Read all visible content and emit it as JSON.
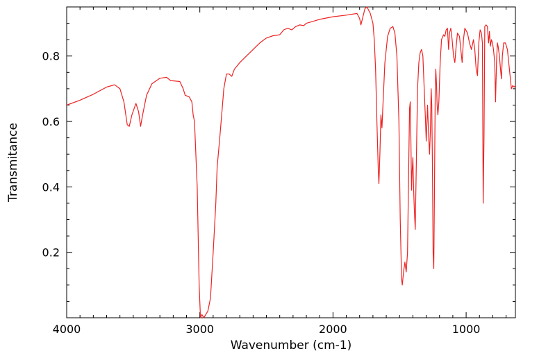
{
  "chart_data": {
    "type": "line",
    "title": "",
    "xlabel": "Wavenumber (cm-1)",
    "ylabel": "Transmitance",
    "xlim": [
      4000,
      630
    ],
    "ylim": [
      0.0,
      0.95
    ],
    "x_ticks": [
      4000,
      3000,
      2000,
      1000
    ],
    "x_tick_labels": [
      "4000",
      "3000",
      "2000",
      "1000"
    ],
    "y_ticks": [
      0.2,
      0.4,
      0.6,
      0.8
    ],
    "y_tick_labels": [
      "0.2",
      "0.4",
      "0.6",
      "0.8"
    ],
    "grid": false,
    "legend": "none",
    "series": [
      {
        "name": "IR spectrum",
        "color": "#ee2222",
        "points": [
          [
            4000,
            0.65
          ],
          [
            3900,
            0.665
          ],
          [
            3800,
            0.683
          ],
          [
            3700,
            0.705
          ],
          [
            3640,
            0.712
          ],
          [
            3600,
            0.7
          ],
          [
            3570,
            0.66
          ],
          [
            3545,
            0.59
          ],
          [
            3530,
            0.585
          ],
          [
            3510,
            0.62
          ],
          [
            3480,
            0.655
          ],
          [
            3460,
            0.63
          ],
          [
            3445,
            0.585
          ],
          [
            3430,
            0.62
          ],
          [
            3400,
            0.68
          ],
          [
            3360,
            0.715
          ],
          [
            3300,
            0.732
          ],
          [
            3250,
            0.735
          ],
          [
            3220,
            0.725
          ],
          [
            3150,
            0.722
          ],
          [
            3125,
            0.7
          ],
          [
            3110,
            0.68
          ],
          [
            3080,
            0.675
          ],
          [
            3060,
            0.66
          ],
          [
            3050,
            0.62
          ],
          [
            3040,
            0.6
          ],
          [
            3020,
            0.4
          ],
          [
            3005,
            0.1
          ],
          [
            2995,
            0.0
          ],
          [
            2985,
            0.01
          ],
          [
            2970,
            0.0
          ],
          [
            2940,
            0.02
          ],
          [
            2920,
            0.06
          ],
          [
            2900,
            0.2
          ],
          [
            2880,
            0.35
          ],
          [
            2870,
            0.46
          ],
          [
            2850,
            0.55
          ],
          [
            2830,
            0.65
          ],
          [
            2820,
            0.7
          ],
          [
            2800,
            0.745
          ],
          [
            2780,
            0.745
          ],
          [
            2760,
            0.738
          ],
          [
            2740,
            0.76
          ],
          [
            2700,
            0.78
          ],
          [
            2650,
            0.8
          ],
          [
            2600,
            0.82
          ],
          [
            2550,
            0.84
          ],
          [
            2500,
            0.855
          ],
          [
            2450,
            0.862
          ],
          [
            2400,
            0.865
          ],
          [
            2370,
            0.88
          ],
          [
            2340,
            0.885
          ],
          [
            2310,
            0.88
          ],
          [
            2280,
            0.89
          ],
          [
            2250,
            0.895
          ],
          [
            2220,
            0.893
          ],
          [
            2200,
            0.9
          ],
          [
            2100,
            0.912
          ],
          [
            2000,
            0.92
          ],
          [
            1900,
            0.925
          ],
          [
            1820,
            0.93
          ],
          [
            1800,
            0.915
          ],
          [
            1790,
            0.895
          ],
          [
            1775,
            0.92
          ],
          [
            1760,
            0.945
          ],
          [
            1745,
            0.95
          ],
          [
            1720,
            0.93
          ],
          [
            1700,
            0.9
          ],
          [
            1690,
            0.85
          ],
          [
            1680,
            0.76
          ],
          [
            1670,
            0.6
          ],
          [
            1660,
            0.45
          ],
          [
            1655,
            0.41
          ],
          [
            1648,
            0.5
          ],
          [
            1640,
            0.62
          ],
          [
            1632,
            0.58
          ],
          [
            1625,
            0.65
          ],
          [
            1610,
            0.78
          ],
          [
            1590,
            0.86
          ],
          [
            1570,
            0.885
          ],
          [
            1550,
            0.89
          ],
          [
            1535,
            0.87
          ],
          [
            1520,
            0.8
          ],
          [
            1505,
            0.6
          ],
          [
            1495,
            0.3
          ],
          [
            1485,
            0.12
          ],
          [
            1480,
            0.1
          ],
          [
            1470,
            0.14
          ],
          [
            1460,
            0.17
          ],
          [
            1450,
            0.14
          ],
          [
            1440,
            0.2
          ],
          [
            1432,
            0.45
          ],
          [
            1425,
            0.64
          ],
          [
            1420,
            0.66
          ],
          [
            1415,
            0.55
          ],
          [
            1410,
            0.39
          ],
          [
            1405,
            0.45
          ],
          [
            1400,
            0.49
          ],
          [
            1395,
            0.4
          ],
          [
            1390,
            0.34
          ],
          [
            1382,
            0.27
          ],
          [
            1375,
            0.45
          ],
          [
            1365,
            0.7
          ],
          [
            1355,
            0.78
          ],
          [
            1345,
            0.81
          ],
          [
            1335,
            0.82
          ],
          [
            1325,
            0.8
          ],
          [
            1315,
            0.7
          ],
          [
            1305,
            0.6
          ],
          [
            1300,
            0.54
          ],
          [
            1294,
            0.6
          ],
          [
            1290,
            0.65
          ],
          [
            1282,
            0.56
          ],
          [
            1275,
            0.5
          ],
          [
            1268,
            0.58
          ],
          [
            1263,
            0.7
          ],
          [
            1258,
            0.65
          ],
          [
            1253,
            0.45
          ],
          [
            1248,
            0.2
          ],
          [
            1243,
            0.15
          ],
          [
            1238,
            0.4
          ],
          [
            1232,
            0.7
          ],
          [
            1228,
            0.76
          ],
          [
            1222,
            0.71
          ],
          [
            1218,
            0.65
          ],
          [
            1212,
            0.62
          ],
          [
            1205,
            0.66
          ],
          [
            1195,
            0.78
          ],
          [
            1185,
            0.85
          ],
          [
            1170,
            0.865
          ],
          [
            1160,
            0.86
          ],
          [
            1150,
            0.88
          ],
          [
            1140,
            0.885
          ],
          [
            1132,
            0.82
          ],
          [
            1125,
            0.87
          ],
          [
            1115,
            0.885
          ],
          [
            1105,
            0.85
          ],
          [
            1095,
            0.8
          ],
          [
            1085,
            0.78
          ],
          [
            1075,
            0.83
          ],
          [
            1065,
            0.87
          ],
          [
            1050,
            0.86
          ],
          [
            1040,
            0.82
          ],
          [
            1030,
            0.78
          ],
          [
            1020,
            0.85
          ],
          [
            1010,
            0.885
          ],
          [
            990,
            0.87
          ],
          [
            975,
            0.84
          ],
          [
            960,
            0.82
          ],
          [
            945,
            0.85
          ],
          [
            935,
            0.82
          ],
          [
            925,
            0.76
          ],
          [
            915,
            0.74
          ],
          [
            905,
            0.84
          ],
          [
            895,
            0.88
          ],
          [
            885,
            0.87
          ],
          [
            878,
            0.84
          ],
          [
            872,
            0.35
          ],
          [
            866,
            0.55
          ],
          [
            860,
            0.89
          ],
          [
            850,
            0.895
          ],
          [
            840,
            0.89
          ],
          [
            832,
            0.84
          ],
          [
            825,
            0.875
          ],
          [
            818,
            0.83
          ],
          [
            810,
            0.85
          ],
          [
            802,
            0.84
          ],
          [
            795,
            0.82
          ],
          [
            785,
            0.78
          ],
          [
            779,
            0.66
          ],
          [
            772,
            0.78
          ],
          [
            765,
            0.84
          ],
          [
            760,
            0.83
          ],
          [
            750,
            0.8
          ],
          [
            742,
            0.76
          ],
          [
            735,
            0.73
          ],
          [
            728,
            0.8
          ],
          [
            718,
            0.84
          ],
          [
            705,
            0.84
          ],
          [
            690,
            0.82
          ],
          [
            680,
            0.78
          ],
          [
            670,
            0.74
          ],
          [
            660,
            0.7
          ],
          [
            650,
            0.71
          ],
          [
            640,
            0.705
          ],
          [
            630,
            0.71
          ]
        ]
      }
    ]
  }
}
